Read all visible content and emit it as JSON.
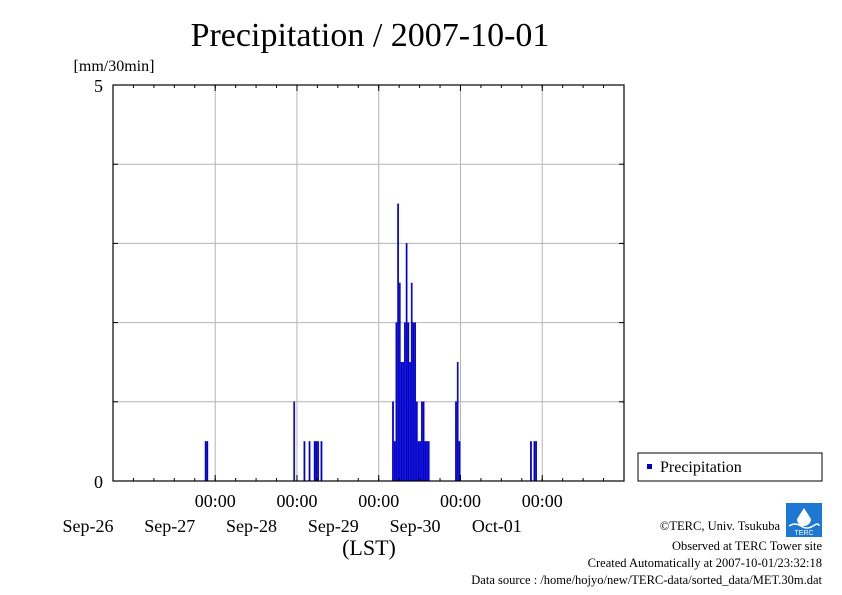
{
  "chart_data": {
    "type": "bar",
    "title": "Precipitation / 2007-10-01",
    "ylabel": "[mm/30min]",
    "xlabel": "(LST)",
    "ylim": [
      0,
      5
    ],
    "ytick_labels": [
      "5",
      "0"
    ],
    "x_time_labels": [
      "00:00",
      "00:00",
      "00:00",
      "00:00",
      "00:00"
    ],
    "x_date_labels": [
      "Sep-26",
      "Sep-27",
      "Sep-28",
      "Sep-29",
      "Sep-30",
      "Oct-01"
    ],
    "legend": "Precipitation",
    "grid": true,
    "series": [
      {
        "name": "Precipitation",
        "unit": "mm/30min",
        "color": "#0000cc",
        "points": [
          {
            "t": "2007-09-26 21:30",
            "v": 0.5
          },
          {
            "t": "2007-09-26 22:00",
            "v": 0.5
          },
          {
            "t": "2007-09-27 23:30",
            "v": 1.0
          },
          {
            "t": "2007-09-28 02:30",
            "v": 0.5
          },
          {
            "t": "2007-09-28 04:00",
            "v": 0.5
          },
          {
            "t": "2007-09-28 05:30",
            "v": 0.5
          },
          {
            "t": "2007-09-28 06:00",
            "v": 0.5
          },
          {
            "t": "2007-09-28 06:30",
            "v": 0.5
          },
          {
            "t": "2007-09-28 07:30",
            "v": 0.5
          },
          {
            "t": "2007-09-29 04:30",
            "v": 1.0
          },
          {
            "t": "2007-09-29 05:00",
            "v": 0.5
          },
          {
            "t": "2007-09-29 05:30",
            "v": 2.0
          },
          {
            "t": "2007-09-29 06:00",
            "v": 3.5
          },
          {
            "t": "2007-09-29 06:30",
            "v": 2.5
          },
          {
            "t": "2007-09-29 07:00",
            "v": 1.5
          },
          {
            "t": "2007-09-29 07:30",
            "v": 1.5
          },
          {
            "t": "2007-09-29 08:00",
            "v": 2.0
          },
          {
            "t": "2007-09-29 08:30",
            "v": 3.0
          },
          {
            "t": "2007-09-29 09:00",
            "v": 2.0
          },
          {
            "t": "2007-09-29 09:30",
            "v": 1.5
          },
          {
            "t": "2007-09-29 10:00",
            "v": 2.5
          },
          {
            "t": "2007-09-29 10:30",
            "v": 2.0
          },
          {
            "t": "2007-09-29 11:00",
            "v": 2.0
          },
          {
            "t": "2007-09-29 11:30",
            "v": 1.0
          },
          {
            "t": "2007-09-29 12:00",
            "v": 0.5
          },
          {
            "t": "2007-09-29 12:30",
            "v": 0.5
          },
          {
            "t": "2007-09-29 13:00",
            "v": 1.0
          },
          {
            "t": "2007-09-29 13:30",
            "v": 1.0
          },
          {
            "t": "2007-09-29 14:00",
            "v": 0.5
          },
          {
            "t": "2007-09-29 14:30",
            "v": 0.5
          },
          {
            "t": "2007-09-29 15:00",
            "v": 0.5
          },
          {
            "t": "2007-09-29 23:00",
            "v": 1.0
          },
          {
            "t": "2007-09-29 23:30",
            "v": 1.5
          },
          {
            "t": "2007-09-30 00:00",
            "v": 0.5
          },
          {
            "t": "2007-09-30 21:00",
            "v": 0.5
          },
          {
            "t": "2007-09-30 22:00",
            "v": 0.5
          },
          {
            "t": "2007-09-30 22:30",
            "v": 0.5
          }
        ]
      }
    ]
  },
  "footer": {
    "copyright": "©TERC, Univ. Tsukuba",
    "observed": "Observed at TERC Tower site",
    "created": "Created Automatically at 2007-10-01/23:32:18",
    "source": "Data source : /home/hojyo/new/TERC-data/sorted_data/MET.30m.dat",
    "logo_text": "TERC"
  }
}
